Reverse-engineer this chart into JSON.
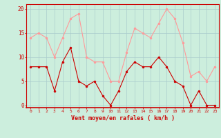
{
  "x": [
    0,
    1,
    2,
    3,
    4,
    5,
    6,
    7,
    8,
    9,
    10,
    11,
    12,
    13,
    14,
    15,
    16,
    17,
    18,
    19,
    20,
    21,
    22,
    23
  ],
  "wind_mean": [
    8,
    8,
    8,
    3,
    9,
    12,
    5,
    4,
    5,
    2,
    0,
    3,
    7,
    9,
    8,
    8,
    10,
    8,
    5,
    4,
    0,
    3,
    0,
    0
  ],
  "wind_gust": [
    14,
    15,
    14,
    10,
    14,
    18,
    19,
    10,
    9,
    9,
    5,
    5,
    11,
    16,
    15,
    14,
    17,
    20,
    18,
    13,
    6,
    7,
    5,
    8
  ],
  "bg_color": "#cceedd",
  "grid_color": "#aacccc",
  "mean_color": "#cc0000",
  "gust_color": "#ff9999",
  "xlabel": "Vent moyen/en rafales ( km/h )",
  "yticks": [
    0,
    5,
    10,
    15,
    20
  ],
  "ylim": [
    -0.5,
    21
  ],
  "xlim": [
    -0.5,
    23.5
  ]
}
